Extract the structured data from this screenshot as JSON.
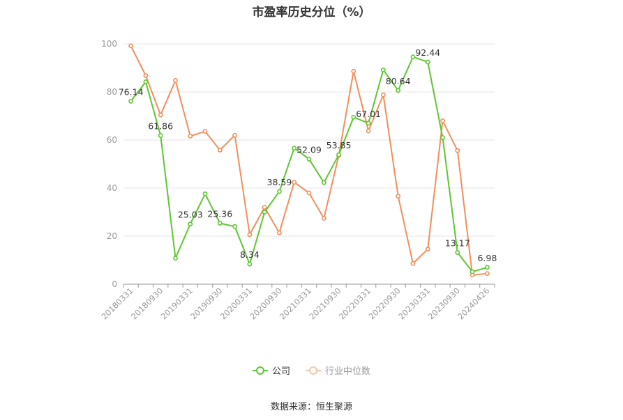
{
  "chart_data": {
    "type": "line",
    "title": "市盈率历史分位（%）",
    "source": "数据来源：恒生聚源",
    "ylim": [
      0,
      100
    ],
    "yticks": [
      0,
      20,
      40,
      60,
      80,
      100
    ],
    "grid": true,
    "legend_position": "bottom",
    "x_tick_labels": [
      "20180331",
      "20180930",
      "20190331",
      "20190930",
      "20200331",
      "20200930",
      "20210331",
      "20210930",
      "20220331",
      "20220930",
      "20230331",
      "20230930",
      "20240426"
    ],
    "series": [
      {
        "name": "公司",
        "color": "#5cc72f",
        "values": [
          76.14,
          84.2,
          61.86,
          10.8,
          25.03,
          37.6,
          25.36,
          24.0,
          8.34,
          30.0,
          38.59,
          56.6,
          52.09,
          42.3,
          53.85,
          69.5,
          67.01,
          89.2,
          80.64,
          94.6,
          92.44,
          61.0,
          13.17,
          5.2,
          6.98
        ],
        "labels": [
          "76.14",
          "",
          "61.86",
          "",
          "25.03",
          "",
          "25.36",
          "",
          "8.34",
          "",
          "38.59",
          "",
          "52.09",
          "",
          "53.85",
          "",
          "67.01",
          "",
          "80.64",
          "",
          "92.44",
          "",
          "13.17",
          "",
          "6.98"
        ]
      },
      {
        "name": "行业中位数",
        "color": "#f28e5a",
        "values": [
          99.2,
          86.8,
          70.4,
          84.8,
          61.6,
          63.6,
          55.8,
          62.0,
          20.6,
          32.0,
          21.4,
          42.4,
          38.0,
          27.4,
          53.6,
          88.6,
          63.8,
          78.8,
          36.6,
          8.6,
          14.6,
          68.0,
          55.6,
          3.8,
          4.4
        ]
      }
    ]
  }
}
